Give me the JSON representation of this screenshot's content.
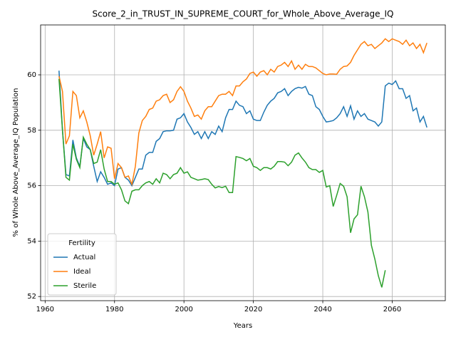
{
  "chart_data": {
    "type": "line",
    "title": "Score_2_in_TRUST_IN_SUPREME_COURT_for_Whole_Above_Average_IQ",
    "xlabel": "Years",
    "ylabel": "% of Whole Above_Average_IQ Population",
    "legend_title": "Fertility",
    "legend_loc": "lower left",
    "grid": true,
    "xlim": [
      1958.7,
      2075.3
    ],
    "ylim": [
      51.85,
      61.8
    ],
    "xticks": [
      1960,
      1980,
      2000,
      2020,
      2040,
      2060
    ],
    "yticks": [
      52,
      54,
      56,
      58,
      60
    ],
    "x": [
      1964,
      1965,
      1966,
      1967,
      1968,
      1969,
      1970,
      1971,
      1972,
      1973,
      1974,
      1975,
      1976,
      1977,
      1978,
      1979,
      1980,
      1981,
      1982,
      1983,
      1984,
      1985,
      1986,
      1987,
      1988,
      1989,
      1990,
      1991,
      1992,
      1993,
      1994,
      1995,
      1996,
      1997,
      1998,
      1999,
      2000,
      2001,
      2002,
      2003,
      2004,
      2005,
      2006,
      2007,
      2008,
      2009,
      2010,
      2011,
      2012,
      2013,
      2014,
      2015,
      2016,
      2017,
      2018,
      2019,
      2020,
      2021,
      2022,
      2023,
      2024,
      2025,
      2026,
      2027,
      2028,
      2029,
      2030,
      2031,
      2032,
      2033,
      2034,
      2035,
      2036,
      2037,
      2038,
      2039,
      2040,
      2041,
      2042,
      2043,
      2044,
      2045,
      2046,
      2047,
      2048,
      2049,
      2050,
      2051,
      2052,
      2053,
      2054,
      2055,
      2056,
      2057,
      2058,
      2059,
      2060,
      2061,
      2062,
      2063,
      2064,
      2065,
      2066,
      2067,
      2068,
      2069,
      2070
    ],
    "series": [
      {
        "name": "Actual",
        "color": "#1f77b4",
        "values": [
          60.15,
          58.0,
          56.4,
          56.35,
          57.65,
          57.0,
          56.7,
          57.7,
          57.4,
          57.3,
          56.7,
          56.15,
          56.5,
          56.3,
          56.05,
          56.1,
          56.0,
          56.6,
          56.65,
          56.3,
          56.2,
          56.0,
          56.3,
          56.6,
          56.6,
          57.1,
          57.2,
          57.2,
          57.6,
          57.7,
          57.95,
          57.98,
          57.98,
          58.0,
          58.4,
          58.45,
          58.6,
          58.3,
          58.1,
          57.85,
          57.95,
          57.7,
          57.95,
          57.7,
          57.95,
          57.85,
          58.15,
          57.95,
          58.45,
          58.75,
          58.75,
          59.05,
          58.9,
          58.85,
          58.6,
          58.7,
          58.4,
          58.35,
          58.35,
          58.65,
          58.9,
          59.05,
          59.15,
          59.35,
          59.4,
          59.5,
          59.25,
          59.4,
          59.5,
          59.55,
          59.52,
          59.58,
          59.3,
          59.25,
          58.85,
          58.75,
          58.5,
          58.3,
          58.32,
          58.35,
          58.45,
          58.6,
          58.85,
          58.5,
          58.88,
          58.4,
          58.7,
          58.5,
          58.6,
          58.4,
          58.35,
          58.3,
          58.15,
          58.3,
          59.6,
          59.7,
          59.65,
          59.78,
          59.5,
          59.5,
          59.15,
          59.25,
          58.7,
          58.8,
          58.3,
          58.5,
          58.1
        ]
      },
      {
        "name": "Ideal",
        "color": "#ff7f0e",
        "values": [
          59.95,
          59.4,
          57.5,
          57.8,
          59.4,
          59.25,
          58.45,
          58.7,
          58.3,
          57.8,
          57.1,
          57.5,
          57.95,
          57.0,
          57.4,
          57.35,
          56.25,
          56.8,
          56.65,
          56.3,
          56.35,
          56.05,
          56.7,
          57.9,
          58.35,
          58.5,
          58.75,
          58.8,
          59.05,
          59.1,
          59.25,
          59.3,
          59.0,
          59.1,
          59.4,
          59.57,
          59.4,
          59.05,
          58.8,
          58.5,
          58.55,
          58.4,
          58.7,
          58.85,
          58.85,
          59.05,
          59.25,
          59.3,
          59.3,
          59.4,
          59.25,
          59.6,
          59.6,
          59.75,
          59.85,
          60.05,
          60.1,
          59.95,
          60.1,
          60.15,
          60.0,
          60.2,
          60.1,
          60.3,
          60.35,
          60.45,
          60.3,
          60.5,
          60.2,
          60.35,
          60.2,
          60.38,
          60.3,
          60.3,
          60.25,
          60.15,
          60.05,
          60.0,
          60.03,
          60.03,
          60.02,
          60.2,
          60.3,
          60.32,
          60.45,
          60.7,
          60.9,
          61.1,
          61.2,
          61.05,
          61.1,
          60.95,
          61.05,
          61.15,
          61.3,
          61.2,
          61.3,
          61.25,
          61.2,
          61.1,
          61.25,
          61.05,
          61.15,
          60.95,
          61.1,
          60.8,
          61.15
        ]
      },
      {
        "name": "Sterile",
        "color": "#2ca02c",
        "values": [
          59.85,
          58.0,
          56.3,
          56.2,
          57.5,
          56.95,
          56.65,
          57.75,
          57.5,
          57.3,
          56.8,
          56.85,
          57.3,
          56.6,
          56.15,
          56.15,
          56.05,
          56.1,
          55.85,
          55.45,
          55.35,
          55.8,
          55.85,
          55.85,
          56.0,
          56.1,
          56.15,
          56.05,
          56.25,
          56.1,
          56.45,
          56.4,
          56.25,
          56.4,
          56.45,
          56.65,
          56.45,
          56.5,
          56.3,
          56.25,
          56.2,
          56.22,
          56.25,
          56.22,
          56.05,
          55.92,
          55.97,
          55.93,
          55.98,
          55.75,
          55.75,
          57.05,
          57.02,
          56.98,
          56.9,
          56.98,
          56.7,
          56.65,
          56.55,
          56.65,
          56.65,
          56.6,
          56.7,
          56.87,
          56.87,
          56.85,
          56.72,
          56.85,
          57.1,
          57.18,
          57.0,
          56.85,
          56.65,
          56.58,
          56.58,
          56.48,
          56.55,
          55.95,
          56.0,
          55.25,
          55.65,
          56.08,
          55.98,
          55.6,
          54.3,
          54.8,
          54.95,
          55.98,
          55.6,
          55.05,
          53.85,
          53.35,
          52.75,
          52.33,
          52.95,
          null,
          null,
          null,
          null,
          null,
          null,
          null,
          null,
          null,
          null,
          null,
          null
        ]
      }
    ]
  }
}
